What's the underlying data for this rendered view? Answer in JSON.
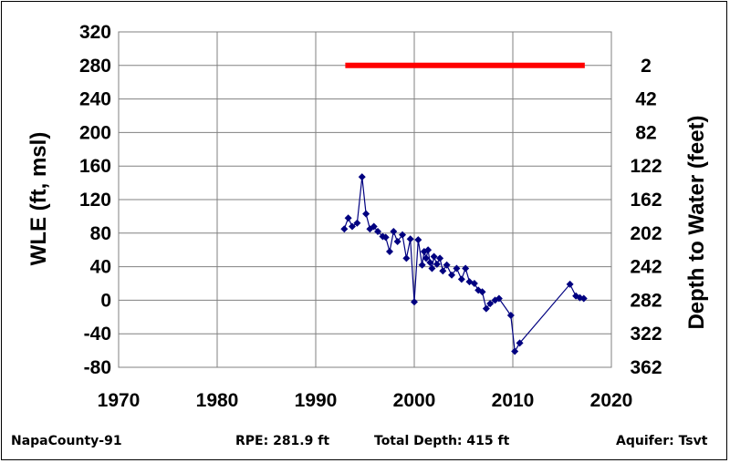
{
  "chart_data": {
    "type": "line",
    "xlim": [
      1970,
      2020
    ],
    "x_ticks": [
      1970,
      1980,
      1990,
      2000,
      2010,
      2020
    ],
    "ylim": [
      -80,
      320
    ],
    "y_ticks": [
      320,
      280,
      240,
      200,
      160,
      120,
      80,
      40,
      0,
      -40,
      -80
    ],
    "ylabel": "WLE (ft, msl)",
    "y2label": "Depth to Water (feet)",
    "y2_ticks": [
      2,
      42,
      82,
      122,
      162,
      202,
      242,
      282,
      322,
      362
    ],
    "grid": true,
    "reference_line": {
      "label": "",
      "y": 280,
      "x_start": 1993,
      "x_end": 2017.3,
      "color": "#ff0000"
    },
    "series": [
      {
        "color": "#000080",
        "marker": "diamond",
        "points": [
          [
            1992.9,
            85
          ],
          [
            1993.3,
            98
          ],
          [
            1993.7,
            88
          ],
          [
            1994.2,
            92
          ],
          [
            1994.7,
            147
          ],
          [
            1995.1,
            103
          ],
          [
            1995.5,
            85
          ],
          [
            1995.9,
            88
          ],
          [
            1996.3,
            82
          ],
          [
            1996.8,
            76
          ],
          [
            1997.1,
            75
          ],
          [
            1997.5,
            58
          ],
          [
            1997.9,
            82
          ],
          [
            1998.3,
            70
          ],
          [
            1998.8,
            78
          ],
          [
            1999.2,
            50
          ],
          [
            1999.6,
            73
          ],
          [
            2000.0,
            -2
          ],
          [
            2000.4,
            72
          ],
          [
            2000.8,
            42
          ],
          [
            2001.0,
            58
          ],
          [
            2001.2,
            50
          ],
          [
            2001.4,
            60
          ],
          [
            2001.6,
            45
          ],
          [
            2001.8,
            38
          ],
          [
            2002.0,
            52
          ],
          [
            2002.3,
            43
          ],
          [
            2002.6,
            50
          ],
          [
            2002.9,
            35
          ],
          [
            2003.3,
            42
          ],
          [
            2003.8,
            30
          ],
          [
            2004.3,
            38
          ],
          [
            2004.8,
            25
          ],
          [
            2005.2,
            38
          ],
          [
            2005.6,
            22
          ],
          [
            2006.1,
            20
          ],
          [
            2006.5,
            12
          ],
          [
            2006.9,
            10
          ],
          [
            2007.3,
            -10
          ],
          [
            2007.7,
            -4
          ],
          [
            2008.2,
            0
          ],
          [
            2008.6,
            2
          ],
          [
            2009.8,
            -18
          ],
          [
            2010.2,
            -61
          ],
          [
            2010.7,
            -51
          ],
          [
            2015.8,
            19
          ],
          [
            2016.4,
            5
          ],
          [
            2016.8,
            3
          ],
          [
            2017.2,
            2
          ]
        ]
      }
    ]
  },
  "footer": {
    "well": "NapaCounty-91",
    "rpe": "RPE: 281.9 ft",
    "depth": "Total Depth: 415 ft",
    "aquifer": "Aquifer: Tsvt"
  }
}
